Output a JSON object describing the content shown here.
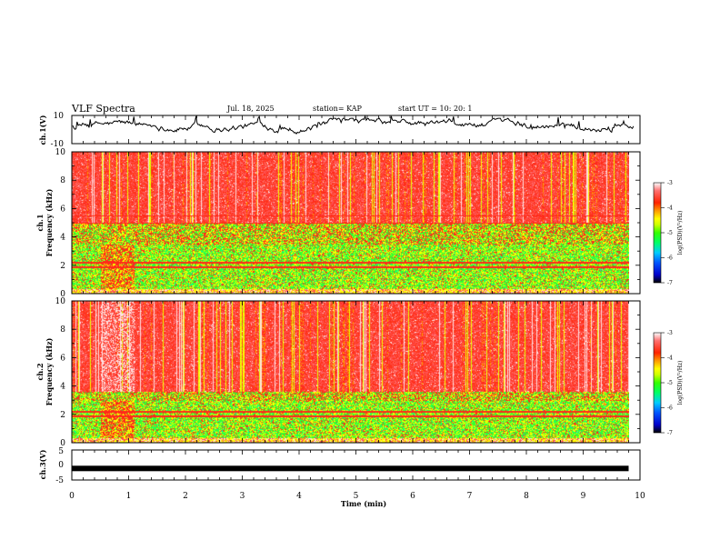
{
  "header": {
    "title": "VLF Spectra",
    "date": "Jul. 18, 2025",
    "station": "station= KAP",
    "start": "start UT =  10: 20: 1"
  },
  "colorbar_scale": [
    "#000000",
    "#0000cc",
    "#0055ff",
    "#00ccff",
    "#00ff66",
    "#33ff00",
    "#ccff00",
    "#ffff00",
    "#ff9900",
    "#ff3300",
    "#ff6060",
    "#ffffff"
  ],
  "chart_data": [
    {
      "type": "line",
      "name": "ch.1 waveform",
      "ylabel": "ch.1(V)",
      "ylim": [
        -10,
        10
      ],
      "yticks": [
        "10",
        "-10"
      ],
      "xlim": [
        0,
        10
      ],
      "description_values": "noisy signal oscillating roughly between -3 and 8 V"
    },
    {
      "type": "heatmap",
      "name": "ch.1 spectrogram",
      "ylabel_line1": "ch.1",
      "ylabel_line2": "Frequency (kHz)",
      "ylim": [
        0,
        10
      ],
      "yticks": [
        "0",
        "2",
        "4",
        "6",
        "8",
        "10"
      ],
      "xlim": [
        0,
        10
      ],
      "data_end_min": 9.8,
      "colorbar": {
        "label": "log(PSD)(V²/Hz)",
        "range": [
          -7,
          -3
        ],
        "ticks": [
          "-3",
          "-4",
          "-5",
          "-6",
          "-7"
        ]
      }
    },
    {
      "type": "heatmap",
      "name": "ch.2 spectrogram",
      "ylabel_line1": "ch.2",
      "ylabel_line2": "Frequency (kHz)",
      "ylim": [
        0,
        10
      ],
      "yticks": [
        "0",
        "2",
        "4",
        "6",
        "8",
        "10"
      ],
      "xlim": [
        0,
        10
      ],
      "data_end_min": 9.8,
      "colorbar": {
        "label": "log(PSD)(V²/Hz)",
        "range": [
          -7,
          -3
        ],
        "ticks": [
          "-3",
          "-4",
          "-5",
          "-6",
          "-7"
        ]
      }
    },
    {
      "type": "line",
      "name": "ch.3 waveform",
      "ylabel": "ch.3(V)",
      "ylim": [
        -5,
        5
      ],
      "yticks": [
        "5",
        "0",
        "-5"
      ],
      "xlim": [
        0,
        10
      ],
      "level": -1,
      "xlabel": "Time (min)",
      "xticks": [
        "0",
        "1",
        "2",
        "3",
        "4",
        "5",
        "6",
        "7",
        "8",
        "9",
        "10"
      ]
    }
  ]
}
